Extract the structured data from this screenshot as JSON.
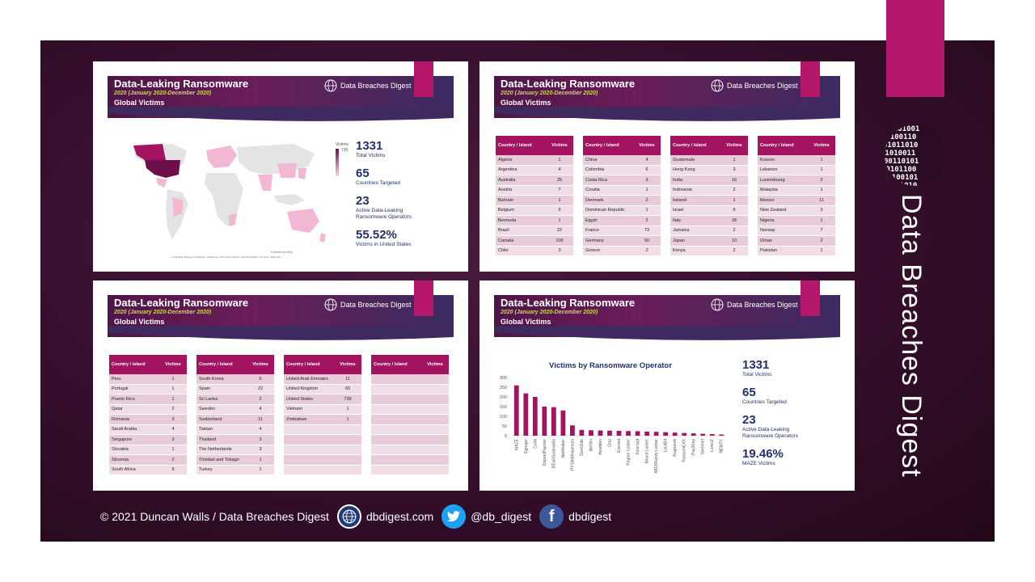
{
  "brand": {
    "vertical_name": "Data Breaches Digest",
    "accent": "#b5176b"
  },
  "slide_header": {
    "title": "Data-Leaking Ransomware",
    "period": "2020 (January 2020-December 2020)",
    "scope": "Global Victims",
    "logo_text": "Data Breaches Digest"
  },
  "slide1": {
    "legend_title": "Victims",
    "legend_max": "739",
    "map_credit": "Powered by Bing",
    "map_copyright": "© Australian Bureau of Statistics, GeoNames, Microsoft, Navinfo, OpenStreetMap, TomTom, Wikipedia",
    "stats": [
      {
        "value": "1331",
        "label": "Total Victims"
      },
      {
        "value": "65",
        "label": "Countries Targeted"
      },
      {
        "value": "23",
        "label": "Active Data-Leaking Ransomware Operators"
      },
      {
        "value": "55.52%",
        "label": "Victims in United States"
      }
    ]
  },
  "table_headers": {
    "country": "Country / Island",
    "victims": "Victims"
  },
  "slide2": {
    "tables": [
      [
        [
          "Algeria",
          "1"
        ],
        [
          "Argentina",
          "4"
        ],
        [
          "Australia",
          "25"
        ],
        [
          "Austria",
          "7"
        ],
        [
          "Bahrain",
          "1"
        ],
        [
          "Belgium",
          "5"
        ],
        [
          "Bermuda",
          "1"
        ],
        [
          "Brazil",
          "22"
        ],
        [
          "Canada",
          "106"
        ],
        [
          "Chile",
          "3"
        ]
      ],
      [
        [
          "China",
          "4"
        ],
        [
          "Colombia",
          "6"
        ],
        [
          "Costa Rica",
          "3"
        ],
        [
          "Croatia",
          "1"
        ],
        [
          "Denmark",
          "2"
        ],
        [
          "Dominican Republic",
          "1"
        ],
        [
          "Egypt",
          "2"
        ],
        [
          "France",
          "73"
        ],
        [
          "Germany",
          "50"
        ],
        [
          "Greece",
          "2"
        ]
      ],
      [
        [
          "Guatemala",
          "1"
        ],
        [
          "Hong Kong",
          "3"
        ],
        [
          "India",
          "16"
        ],
        [
          "Indonesia",
          "2"
        ],
        [
          "Ireland",
          "1"
        ],
        [
          "Israel",
          "6"
        ],
        [
          "Italy",
          "39"
        ],
        [
          "Jamaica",
          "2"
        ],
        [
          "Japan",
          "10"
        ],
        [
          "Kenya",
          "2"
        ]
      ],
      [
        [
          "Kosovo",
          "1"
        ],
        [
          "Lebanon",
          "1"
        ],
        [
          "Luxembourg",
          "2"
        ],
        [
          "Malaysia",
          "1"
        ],
        [
          "Mexico",
          "11"
        ],
        [
          "New Zealand",
          "3"
        ],
        [
          "Nigeria",
          "1"
        ],
        [
          "Norway",
          "7"
        ],
        [
          "Oman",
          "2"
        ],
        [
          "Pakistan",
          "1"
        ]
      ]
    ]
  },
  "slide3": {
    "tables": [
      [
        [
          "Peru",
          "1"
        ],
        [
          "Portugal",
          "1"
        ],
        [
          "Puerto Rico",
          "1"
        ],
        [
          "Qatar",
          "2"
        ],
        [
          "Romania",
          "3"
        ],
        [
          "Saudi Arabia",
          "4"
        ],
        [
          "Singapore",
          "3"
        ],
        [
          "Slovakia",
          "1"
        ],
        [
          "Slovenia",
          "2"
        ],
        [
          "South Africa",
          "9"
        ]
      ],
      [
        [
          "South Korea",
          "5"
        ],
        [
          "Spain",
          "22"
        ],
        [
          "Sri Lanka",
          "2"
        ],
        [
          "Sweden",
          "4"
        ],
        [
          "Switzerland",
          "11"
        ],
        [
          "Taiwan",
          "4"
        ],
        [
          "Thailand",
          "3"
        ],
        [
          "The Netherlands",
          "3"
        ],
        [
          "Trinidad and Tobago",
          "1"
        ],
        [
          "Turkey",
          "1"
        ]
      ],
      [
        [
          "United Arab Emirates",
          "11"
        ],
        [
          "United Kingdom",
          "65"
        ],
        [
          "United States",
          "739"
        ],
        [
          "Vietnam",
          "1"
        ],
        [
          "Zimbabwe",
          "1"
        ],
        [
          "",
          ""
        ],
        [
          "",
          ""
        ],
        [
          "",
          ""
        ],
        [
          "",
          ""
        ],
        [
          "",
          ""
        ]
      ],
      [
        [
          "",
          ""
        ],
        [
          "",
          ""
        ],
        [
          "",
          ""
        ],
        [
          "",
          ""
        ],
        [
          "",
          ""
        ],
        [
          "",
          ""
        ],
        [
          "",
          ""
        ],
        [
          "",
          ""
        ],
        [
          "",
          ""
        ],
        [
          "",
          ""
        ]
      ]
    ]
  },
  "slide4": {
    "stats": [
      {
        "value": "1331",
        "label": "Total Victims"
      },
      {
        "value": "65",
        "label": "Countries Targeted"
      },
      {
        "value": "23",
        "label": "Active Data-Leaking Ransomware Operators"
      },
      {
        "value": "19.46%",
        "label": "MAZE Victims"
      }
    ]
  },
  "chart_data": {
    "type": "bar",
    "title": "Victims by Ransomware Operator",
    "categories": [
      "MAZE",
      "Egregor",
      "Conti",
      "DoppelPaymer",
      "REvil/Sodinokibi",
      "NetWalker",
      "PYSA/Mespinoza",
      "DarkSide",
      "Nefilim",
      "Avaddon",
      "Clop",
      "Everest",
      "Ragnar Locker",
      "Suncrypt",
      "Mount Locker",
      "AKO/Ranzy Locker",
      "LockBit",
      "Ragnarok",
      "RansomEXX",
      "Pay2Key",
      "Sekhmet",
      "LorenZ",
      "NEMTY"
    ],
    "values": [
      259,
      218,
      200,
      150,
      147,
      130,
      53,
      30,
      28,
      27,
      26,
      25,
      24,
      23,
      21,
      20,
      18,
      16,
      14,
      12,
      10,
      8,
      6
    ],
    "ylim": [
      0,
      300
    ],
    "yticks": [
      "300",
      "250",
      "200",
      "150",
      "100",
      "50",
      "0"
    ],
    "bar_color": "#a3135f"
  },
  "footer": {
    "copyright": "© 2021 Duncan Walls / Data Breaches Digest",
    "website": "dbdigest.com",
    "twitter": "@db_digest",
    "facebook": "dbdigest"
  }
}
